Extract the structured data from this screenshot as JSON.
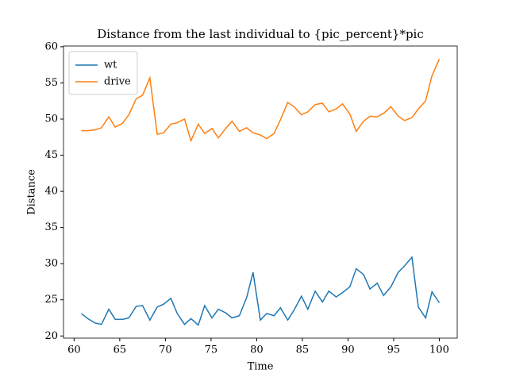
{
  "chart_data": {
    "type": "line",
    "title": "Distance from the last individual to {pic_percent}*pic",
    "xlabel": "Time",
    "ylabel": "Distance",
    "x": [
      60.8,
      61.5,
      62.3,
      63.0,
      63.8,
      64.5,
      65.3,
      66.0,
      66.8,
      67.5,
      68.3,
      69.1,
      69.8,
      70.6,
      71.3,
      72.1,
      72.8,
      73.6,
      74.3,
      75.1,
      75.8,
      76.6,
      77.3,
      78.1,
      78.9,
      79.6,
      80.4,
      81.1,
      81.9,
      82.6,
      83.4,
      84.1,
      84.9,
      85.6,
      86.4,
      87.2,
      87.9,
      88.7,
      89.4,
      90.2,
      90.9,
      91.7,
      92.4,
      93.2,
      93.9,
      94.7,
      95.5,
      96.2,
      97.0,
      97.7,
      98.5,
      99.2,
      100.0
    ],
    "series": [
      {
        "name": "wt",
        "color": "#1f77b4",
        "values": [
          23.1,
          22.4,
          21.8,
          21.6,
          23.7,
          22.3,
          22.3,
          22.5,
          24.1,
          24.2,
          22.2,
          24.0,
          24.4,
          25.2,
          23.1,
          21.6,
          22.4,
          21.5,
          24.2,
          22.5,
          23.7,
          23.2,
          22.5,
          22.8,
          25.3,
          28.8,
          22.2,
          23.1,
          22.8,
          23.9,
          22.2,
          23.6,
          25.5,
          23.7,
          26.2,
          24.7,
          26.2,
          25.4,
          26.0,
          26.8,
          29.3,
          28.5,
          26.5,
          27.3,
          25.6,
          26.8,
          28.8,
          29.7,
          30.9,
          24.0,
          22.5,
          26.1,
          24.6
        ]
      },
      {
        "name": "drive",
        "color": "#ff7f0e",
        "values": [
          48.4,
          48.4,
          48.5,
          48.8,
          50.3,
          48.9,
          49.4,
          50.6,
          52.8,
          53.3,
          55.7,
          47.9,
          48.1,
          49.3,
          49.5,
          50.0,
          47.0,
          49.3,
          48.0,
          48.7,
          47.4,
          48.7,
          49.7,
          48.3,
          48.8,
          48.1,
          47.8,
          47.3,
          48.0,
          49.9,
          52.3,
          51.7,
          50.6,
          51.0,
          52.0,
          52.2,
          51.0,
          51.4,
          52.1,
          50.7,
          48.3,
          49.7,
          50.4,
          50.3,
          50.8,
          51.7,
          50.4,
          49.8,
          50.2,
          51.4,
          52.5,
          56.0,
          58.3
        ]
      }
    ],
    "xlim": [
      58.84,
      101.96
    ],
    "ylim": [
      19.7,
      60.1
    ],
    "xticks": [
      60,
      65,
      70,
      75,
      80,
      85,
      90,
      95,
      100
    ],
    "yticks": [
      20,
      25,
      30,
      35,
      40,
      45,
      50,
      55,
      60
    ],
    "legend": "upper left"
  }
}
